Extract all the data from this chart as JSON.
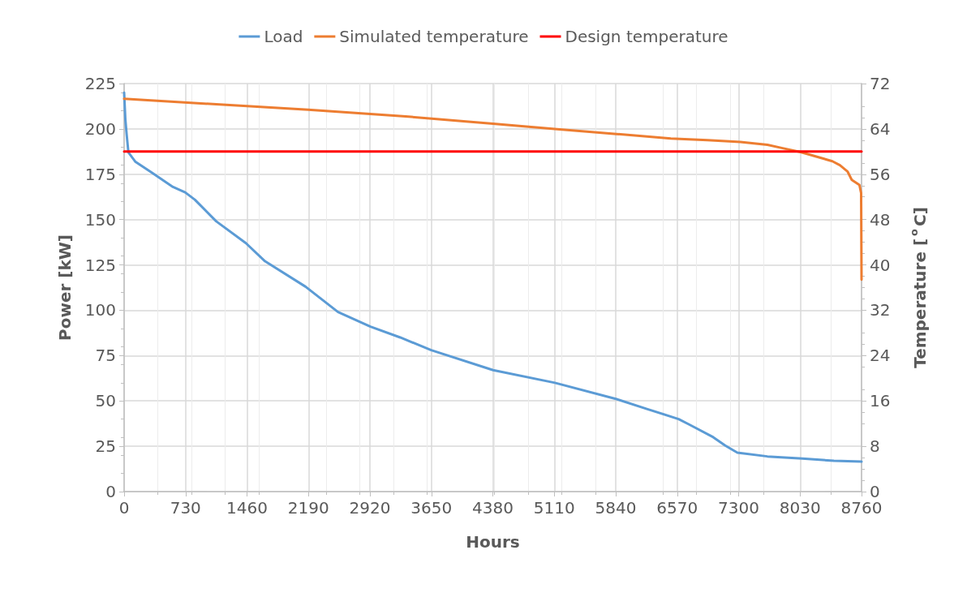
{
  "chart_data": {
    "type": "line",
    "xlabel": "Hours",
    "ylabel": "Power [kW]",
    "y2label": "Temperature [$^{o}$C]",
    "xlim": [
      0,
      8760
    ],
    "xticks": [
      0,
      730,
      1460,
      2190,
      2920,
      3650,
      4380,
      5110,
      5840,
      6570,
      7300,
      8030,
      8760
    ],
    "ylim": [
      0,
      225
    ],
    "yticks": [
      0,
      25,
      50,
      75,
      100,
      125,
      150,
      175,
      200,
      225
    ],
    "y2lim": [
      0,
      72
    ],
    "y2ticks": [
      0,
      8,
      16,
      24,
      32,
      40,
      48,
      56,
      64,
      72
    ],
    "grid": true,
    "legend": "top",
    "marker": "none",
    "line_style": "solid",
    "series": [
      {
        "name": "Load",
        "color": "#5b9bd5",
        "x": [
          0,
          15,
          30,
          51,
          132,
          325,
          580,
          725,
          840,
          1095,
          1447,
          1674,
          2155,
          2541,
          2926,
          3280,
          3648,
          4383,
          5117,
          5851,
          6210,
          6587,
          6712,
          6998,
          7141,
          7285,
          7642,
          8055,
          8432,
          8760
        ],
        "values": [
          220,
          205,
          197,
          187,
          182,
          176,
          168,
          165,
          161,
          149,
          137,
          127,
          113,
          99,
          91,
          85,
          78,
          67,
          60,
          51,
          45.6,
          40,
          37,
          30,
          25.4,
          21.5,
          19.4,
          18.2,
          17,
          16.5
        ]
      },
      {
        "name": "Simulated temperature",
        "color": "#ed7d31",
        "axis": "y2",
        "x": [
          0,
          2187,
          3344,
          4383,
          5117,
          5851,
          6495,
          6927,
          7321,
          7642,
          7822,
          8037,
          8413,
          8503,
          8593,
          8644,
          8735,
          8755,
          8760
        ],
        "values": [
          69.3,
          67.4,
          66.2,
          64.9,
          64,
          63.1,
          62.3,
          62,
          61.7,
          61.2,
          60.6,
          59.9,
          58.3,
          57.6,
          56.5,
          55,
          54.1,
          52.7,
          37.4
        ]
      },
      {
        "name": "Design temperature",
        "color": "#ff0000",
        "axis": "y2",
        "x": [
          0,
          8760
        ],
        "values": [
          60,
          60
        ]
      }
    ]
  }
}
